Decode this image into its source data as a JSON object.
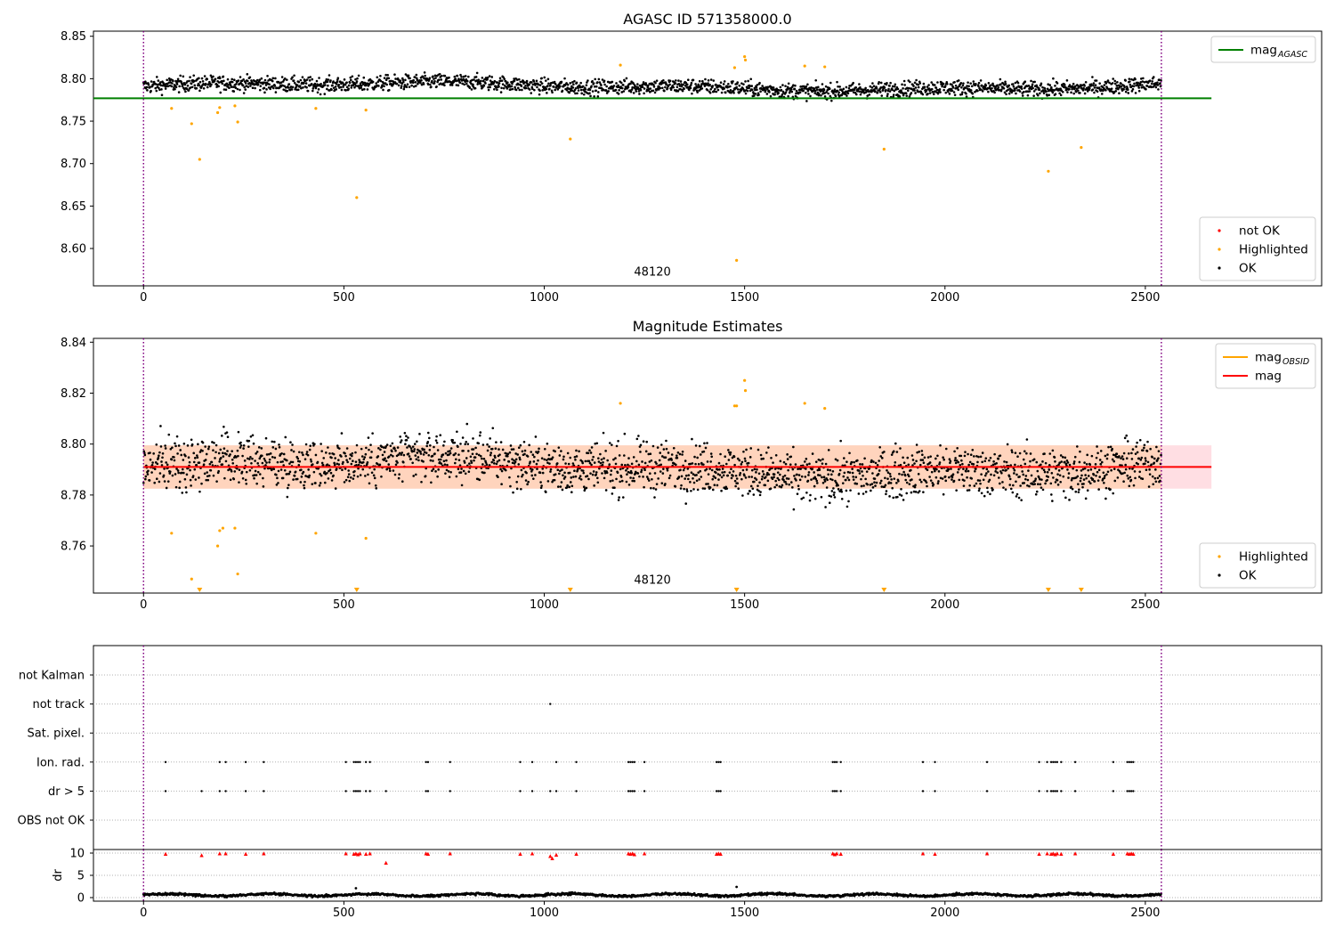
{
  "colors": {
    "ok": "#000000",
    "highlighted": "#ffa500",
    "not_ok": "#ff0000",
    "mag_agasc_line": "#008000",
    "mag_line": "#ff0000",
    "mag_obsid_line": "#ffa500",
    "band": "#ffb6c1",
    "band_overlap": "#ffd0b0",
    "obs_boundary": "#800080",
    "grid": "#b0b0b0"
  },
  "chart_data": [
    {
      "type": "scatter",
      "title": "AGASC ID 571358000.0",
      "xlim": [
        -125,
        2940
      ],
      "ylim": [
        8.556,
        8.856
      ],
      "xticks": [
        0,
        500,
        1000,
        1500,
        2000,
        2500
      ],
      "yticks": [
        8.6,
        8.65,
        8.7,
        8.75,
        8.8,
        8.85
      ],
      "ytick_labels": [
        "8.60",
        "8.65",
        "8.70",
        "8.75",
        "8.80",
        "8.85"
      ],
      "obs_boundaries": [
        0,
        2540
      ],
      "obsid_annotation": {
        "text": "48120",
        "x": 1270,
        "y": 8.572
      },
      "mag_agasc": {
        "value": 8.777,
        "x_range": [
          -125,
          2665
        ]
      },
      "ok_band": {
        "x_range": [
          0,
          2540
        ],
        "center": 8.791,
        "spread": 0.011
      },
      "highlighted": [
        [
          70,
          8.765
        ],
        [
          120,
          8.747
        ],
        [
          140,
          8.705
        ],
        [
          185,
          8.76
        ],
        [
          190,
          8.766
        ],
        [
          228,
          8.768
        ],
        [
          235,
          8.749
        ],
        [
          430,
          8.765
        ],
        [
          532,
          8.66
        ],
        [
          555,
          8.763
        ],
        [
          1065,
          8.729
        ],
        [
          1190,
          8.816
        ],
        [
          1475,
          8.813
        ],
        [
          1480,
          8.586
        ],
        [
          1500,
          8.826
        ],
        [
          1502,
          8.822
        ],
        [
          1650,
          8.815
        ],
        [
          1700,
          8.814
        ],
        [
          1848,
          8.717
        ],
        [
          2258,
          8.691
        ],
        [
          2340,
          8.719
        ]
      ],
      "legends": [
        {
          "position": "top-right",
          "entries": [
            {
              "label": "mag",
              "sub": "AGASC",
              "kind": "line",
              "color": "#008000"
            }
          ]
        },
        {
          "position": "lower-right",
          "entries": [
            {
              "label": "not OK",
              "kind": "dot",
              "color": "#ff0000"
            },
            {
              "label": "Highlighted",
              "kind": "dot",
              "color": "#ffa500"
            },
            {
              "label": "OK",
              "kind": "dot",
              "color": "#000000"
            }
          ]
        }
      ]
    },
    {
      "type": "scatter",
      "title": "Magnitude Estimates",
      "xlim": [
        -125,
        2940
      ],
      "ylim": [
        8.7415,
        8.8415
      ],
      "xticks": [
        0,
        500,
        1000,
        1500,
        2000,
        2500
      ],
      "yticks": [
        8.76,
        8.78,
        8.8,
        8.82,
        8.84
      ],
      "ytick_labels": [
        "8.76",
        "8.78",
        "8.80",
        "8.82",
        "8.84"
      ],
      "obs_boundaries": [
        0,
        2540
      ],
      "obsid_annotation": {
        "text": "48120",
        "x": 1270,
        "y": 8.7465
      },
      "mag": {
        "value": 8.791,
        "x_range": [
          0,
          2665
        ]
      },
      "mag_band": {
        "range": [
          8.7825,
          8.7995
        ],
        "x_range": [
          0,
          2665
        ]
      },
      "obsid_band": {
        "range": [
          8.7825,
          8.7995
        ],
        "x_range": [
          0,
          2540
        ]
      },
      "ok_band": {
        "x_range": [
          0,
          2540
        ],
        "center": 8.791,
        "spread": 0.009
      },
      "highlighted": [
        [
          70,
          8.765
        ],
        [
          120,
          8.747
        ],
        [
          185,
          8.76
        ],
        [
          190,
          8.766
        ],
        [
          198,
          8.767
        ],
        [
          228,
          8.767
        ],
        [
          235,
          8.749
        ],
        [
          430,
          8.765
        ],
        [
          555,
          8.763
        ],
        [
          1190,
          8.816
        ],
        [
          1475,
          8.815
        ],
        [
          1480,
          8.815
        ],
        [
          1500,
          8.825
        ],
        [
          1502,
          8.821
        ],
        [
          1650,
          8.816
        ],
        [
          1700,
          8.814
        ]
      ],
      "lower_markers": [
        140,
        532,
        1065,
        1480,
        1848,
        2258,
        2340
      ],
      "legends": [
        {
          "position": "top-right",
          "entries": [
            {
              "label": "mag",
              "sub": "OBSID",
              "kind": "line",
              "color": "#ffa500"
            },
            {
              "label": "mag",
              "kind": "line",
              "color": "#ff0000"
            }
          ]
        },
        {
          "position": "lower-right",
          "entries": [
            {
              "label": "Highlighted",
              "kind": "dot",
              "color": "#ffa500"
            },
            {
              "label": "OK",
              "kind": "dot",
              "color": "#000000"
            }
          ]
        }
      ]
    },
    {
      "type": "scatter",
      "title": "",
      "xlim": [
        -125,
        2940
      ],
      "flag_rows": [
        "not Kalman",
        "not track",
        "Sat. pixel.",
        "Ion. rad.",
        "dr > 5",
        "OBS not OK"
      ],
      "obs_boundaries": [
        0,
        2540
      ],
      "flag_points": {
        "not track": [
          1015
        ],
        "Ion. rad.": [
          55,
          190,
          205,
          255,
          300,
          505,
          525,
          530,
          535,
          540,
          555,
          565,
          705,
          710,
          765,
          940,
          970,
          1030,
          1080,
          1210,
          1215,
          1220,
          1225,
          1250,
          1430,
          1435,
          1440,
          1720,
          1725,
          1730,
          1740,
          1945,
          1975,
          2105,
          2235,
          2255,
          2265,
          2270,
          2275,
          2280,
          2290,
          2325,
          2420,
          2455,
          2460,
          2465,
          2470
        ],
        "dr > 5": [
          55,
          145,
          190,
          205,
          255,
          300,
          505,
          525,
          530,
          535,
          540,
          555,
          565,
          605,
          705,
          710,
          765,
          940,
          970,
          1015,
          1030,
          1080,
          1210,
          1215,
          1220,
          1225,
          1250,
          1430,
          1435,
          1440,
          1720,
          1725,
          1730,
          1740,
          1945,
          1975,
          2105,
          2235,
          2255,
          2265,
          2270,
          2275,
          2280,
          2290,
          2325,
          2420,
          2455,
          2460,
          2465,
          2470
        ]
      },
      "dr": {
        "ylabel": "dr",
        "ylim": [
          -0.8,
          10.8
        ],
        "yticks": [
          0,
          5,
          10
        ],
        "ytick_labels": [
          "0",
          "5",
          "10"
        ],
        "xticks": [
          0,
          500,
          1000,
          1500,
          2000,
          2500
        ],
        "high_points": [
          [
            55,
            9.8
          ],
          [
            145,
            9.5
          ],
          [
            190,
            9.9
          ],
          [
            205,
            9.9
          ],
          [
            255,
            9.8
          ],
          [
            300,
            9.9
          ],
          [
            505,
            9.9
          ],
          [
            525,
            9.8
          ],
          [
            530,
            9.9
          ],
          [
            535,
            9.7
          ],
          [
            540,
            9.9
          ],
          [
            555,
            9.8
          ],
          [
            565,
            9.9
          ],
          [
            605,
            7.8
          ],
          [
            705,
            9.9
          ],
          [
            710,
            9.8
          ],
          [
            765,
            9.9
          ],
          [
            940,
            9.8
          ],
          [
            970,
            9.9
          ],
          [
            1015,
            9.3
          ],
          [
            1020,
            8.8
          ],
          [
            1030,
            9.6
          ],
          [
            1080,
            9.8
          ],
          [
            1210,
            9.9
          ],
          [
            1215,
            9.8
          ],
          [
            1220,
            9.9
          ],
          [
            1225,
            9.7
          ],
          [
            1250,
            9.9
          ],
          [
            1430,
            9.8
          ],
          [
            1435,
            9.9
          ],
          [
            1440,
            9.8
          ],
          [
            1720,
            9.9
          ],
          [
            1725,
            9.7
          ],
          [
            1730,
            9.9
          ],
          [
            1740,
            9.8
          ],
          [
            1945,
            9.9
          ],
          [
            1975,
            9.8
          ],
          [
            2105,
            9.9
          ],
          [
            2235,
            9.8
          ],
          [
            2255,
            9.9
          ],
          [
            2265,
            9.8
          ],
          [
            2270,
            9.9
          ],
          [
            2275,
            9.7
          ],
          [
            2280,
            9.9
          ],
          [
            2290,
            9.8
          ],
          [
            2325,
            9.9
          ],
          [
            2420,
            9.8
          ],
          [
            2455,
            9.9
          ],
          [
            2460,
            9.8
          ],
          [
            2465,
            9.9
          ],
          [
            2470,
            9.8
          ]
        ],
        "outliers": [
          [
            530,
            2.1
          ],
          [
            1480,
            2.4
          ]
        ],
        "baseline": {
          "x_range": [
            0,
            2540
          ],
          "mean": 0.6,
          "spread": 0.35
        }
      }
    }
  ]
}
